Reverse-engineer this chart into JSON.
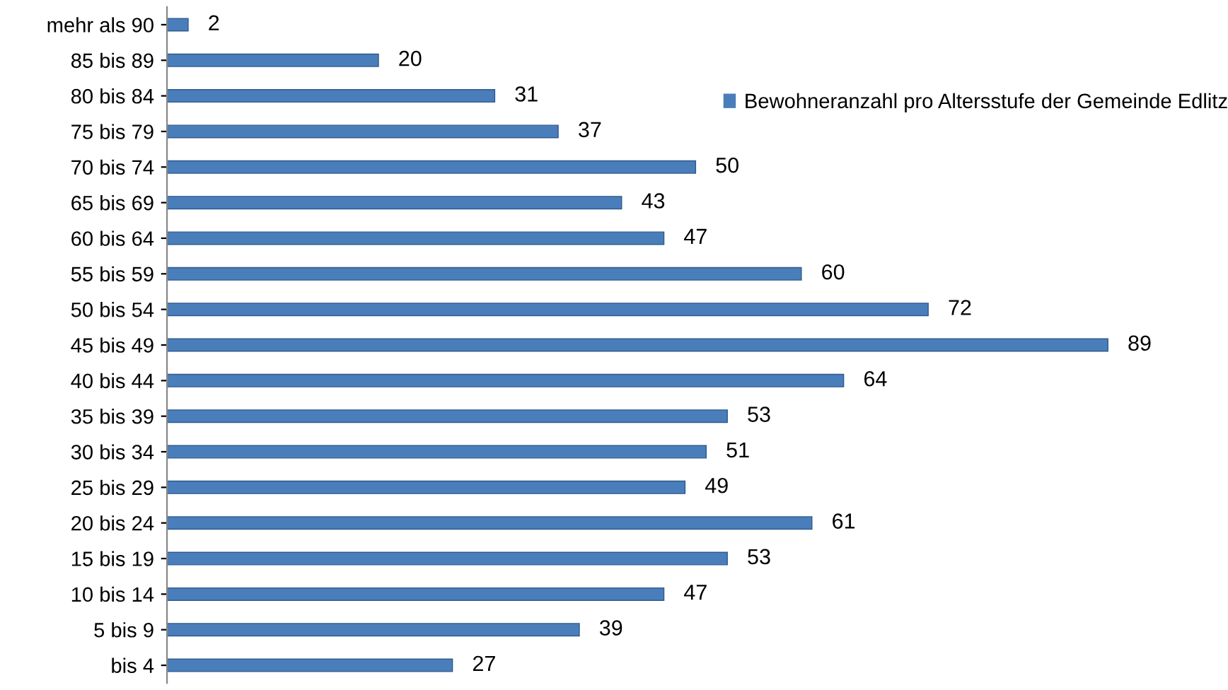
{
  "chart_data": {
    "type": "bar",
    "orientation": "horizontal",
    "categories": [
      "mehr als 90",
      "85 bis 89",
      "80 bis 84",
      "75 bis 79",
      "70 bis 74",
      "65 bis 69",
      "60 bis 64",
      "55 bis 59",
      "50 bis 54",
      "45 bis 49",
      "40 bis 44",
      "35 bis 39",
      "30 bis 34",
      "25 bis 29",
      "20 bis 24",
      "15 bis 19",
      "10 bis 14",
      "5 bis 9",
      "bis 4"
    ],
    "series": [
      {
        "name": "Bewohneranzahl pro Altersstufe der Gemeinde Edlitz",
        "color": "#4a7ebb",
        "values": [
          2,
          20,
          31,
          37,
          50,
          43,
          47,
          60,
          72,
          89,
          64,
          53,
          51,
          49,
          61,
          53,
          47,
          39,
          27
        ]
      }
    ],
    "data_labels": true,
    "legend": "top right",
    "grid": false,
    "tick_labels": "y"
  }
}
